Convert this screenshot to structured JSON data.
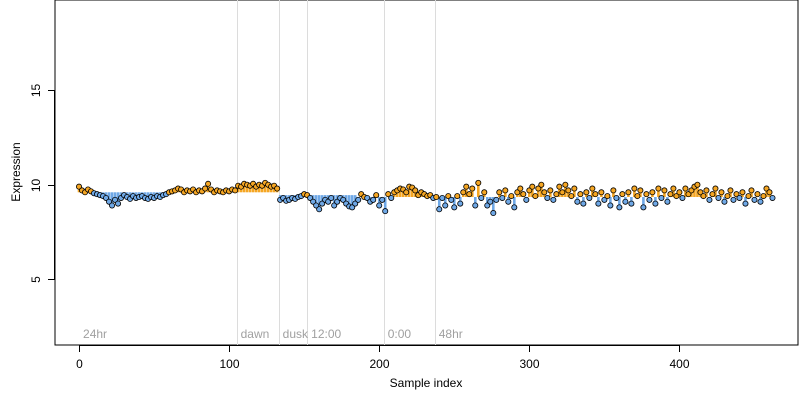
{
  "chart_data": {
    "type": "scatter",
    "title": "",
    "xlabel": "Sample index",
    "ylabel": "Expression",
    "xlim": [
      -16,
      479
    ],
    "ylim": [
      1.5,
      19.8
    ],
    "x_ticks": [
      "0",
      "100",
      "200",
      "300",
      "400"
    ],
    "x_tick_values": [
      0,
      100,
      200,
      300,
      400
    ],
    "y_ticks": [
      "5",
      "10",
      "15"
    ],
    "y_tick_values": [
      5,
      10,
      15
    ],
    "grid": false,
    "legend": "none",
    "colors": {
      "above_trend": "#f5a623",
      "below_trend": "#6fa8e6",
      "point_edge": "#000000",
      "region_line": "#dcdcdc",
      "region_label": "#a0a0a0"
    },
    "region_markers": [
      {
        "label": "24hr",
        "x": 0,
        "line": false
      },
      {
        "label": "dawn",
        "x": 105,
        "line": true
      },
      {
        "label": "dusk",
        "x": 133,
        "line": true
      },
      {
        "label": "12:00",
        "x": 152,
        "line": true
      },
      {
        "label": "0:00",
        "x": 203,
        "line": true
      },
      {
        "label": "48hr",
        "x": 237,
        "line": true
      }
    ],
    "trend_segments": [
      {
        "x_start": 0,
        "x_end": 133,
        "y": 9.6
      },
      {
        "x_start": 133,
        "x_end": 185,
        "y": 9.45
      },
      {
        "x_start": 185,
        "x_end": 460,
        "y": 9.35
      }
    ],
    "points": [
      [
        0,
        9.9
      ],
      [
        2,
        9.7
      ],
      [
        4,
        9.6
      ],
      [
        6,
        9.75
      ],
      [
        8,
        9.65
      ],
      [
        10,
        9.55
      ],
      [
        12,
        9.5
      ],
      [
        14,
        9.45
      ],
      [
        16,
        9.4
      ],
      [
        18,
        9.3
      ],
      [
        20,
        9.1
      ],
      [
        22,
        8.9
      ],
      [
        24,
        9.2
      ],
      [
        26,
        9.0
      ],
      [
        28,
        9.3
      ],
      [
        30,
        9.45
      ],
      [
        32,
        9.35
      ],
      [
        34,
        9.25
      ],
      [
        36,
        9.4
      ],
      [
        38,
        9.3
      ],
      [
        40,
        9.35
      ],
      [
        42,
        9.4
      ],
      [
        44,
        9.3
      ],
      [
        46,
        9.25
      ],
      [
        48,
        9.35
      ],
      [
        50,
        9.3
      ],
      [
        52,
        9.4
      ],
      [
        54,
        9.35
      ],
      [
        56,
        9.45
      ],
      [
        58,
        9.5
      ],
      [
        60,
        9.6
      ],
      [
        62,
        9.65
      ],
      [
        64,
        9.7
      ],
      [
        66,
        9.8
      ],
      [
        68,
        9.75
      ],
      [
        70,
        9.6
      ],
      [
        72,
        9.7
      ],
      [
        74,
        9.65
      ],
      [
        76,
        9.75
      ],
      [
        78,
        9.6
      ],
      [
        80,
        9.7
      ],
      [
        82,
        9.65
      ],
      [
        84,
        9.8
      ],
      [
        86,
        10.05
      ],
      [
        88,
        9.75
      ],
      [
        90,
        9.6
      ],
      [
        92,
        9.7
      ],
      [
        94,
        9.65
      ],
      [
        96,
        9.6
      ],
      [
        98,
        9.7
      ],
      [
        100,
        9.65
      ],
      [
        102,
        9.75
      ],
      [
        104,
        9.7
      ],
      [
        106,
        9.95
      ],
      [
        108,
        9.9
      ],
      [
        110,
        10.05
      ],
      [
        112,
        10.0
      ],
      [
        114,
        9.95
      ],
      [
        116,
        10.05
      ],
      [
        118,
        9.9
      ],
      [
        120,
        10.0
      ],
      [
        122,
        9.95
      ],
      [
        124,
        10.1
      ],
      [
        126,
        10.0
      ],
      [
        128,
        9.9
      ],
      [
        130,
        9.95
      ],
      [
        132,
        9.8
      ],
      [
        134,
        9.2
      ],
      [
        136,
        9.3
      ],
      [
        138,
        9.15
      ],
      [
        140,
        9.2
      ],
      [
        142,
        9.3
      ],
      [
        144,
        9.25
      ],
      [
        146,
        9.35
      ],
      [
        148,
        9.4
      ],
      [
        150,
        9.5
      ],
      [
        152,
        9.45
      ],
      [
        154,
        9.3
      ],
      [
        156,
        9.1
      ],
      [
        158,
        8.9
      ],
      [
        160,
        8.7
      ],
      [
        162,
        9.0
      ],
      [
        164,
        9.2
      ],
      [
        166,
        9.1
      ],
      [
        168,
        9.3
      ],
      [
        170,
        8.9
      ],
      [
        172,
        9.1
      ],
      [
        174,
        9.3
      ],
      [
        176,
        9.2
      ],
      [
        178,
        9.0
      ],
      [
        180,
        8.85
      ],
      [
        182,
        8.8
      ],
      [
        184,
        9.0
      ],
      [
        186,
        9.2
      ],
      [
        188,
        9.5
      ],
      [
        190,
        9.35
      ],
      [
        192,
        9.3
      ],
      [
        194,
        9.1
      ],
      [
        196,
        9.2
      ],
      [
        198,
        9.45
      ],
      [
        200,
        8.9
      ],
      [
        202,
        9.2
      ],
      [
        204,
        8.6
      ],
      [
        206,
        9.5
      ],
      [
        208,
        9.3
      ],
      [
        210,
        9.6
      ],
      [
        212,
        9.7
      ],
      [
        214,
        9.8
      ],
      [
        216,
        9.75
      ],
      [
        218,
        9.6
      ],
      [
        220,
        9.9
      ],
      [
        222,
        9.85
      ],
      [
        224,
        9.7
      ],
      [
        226,
        9.45
      ],
      [
        228,
        9.6
      ],
      [
        230,
        9.5
      ],
      [
        232,
        9.4
      ],
      [
        234,
        9.45
      ],
      [
        236,
        9.3
      ],
      [
        238,
        9.35
      ],
      [
        240,
        8.7
      ],
      [
        242,
        9.3
      ],
      [
        244,
        8.9
      ],
      [
        246,
        9.4
      ],
      [
        248,
        9.2
      ],
      [
        250,
        8.8
      ],
      [
        252,
        9.4
      ],
      [
        254,
        9.0
      ],
      [
        256,
        9.6
      ],
      [
        258,
        9.9
      ],
      [
        260,
        9.5
      ],
      [
        262,
        9.8
      ],
      [
        264,
        8.9
      ],
      [
        266,
        10.1
      ],
      [
        268,
        9.3
      ],
      [
        270,
        9.6
      ],
      [
        272,
        8.9
      ],
      [
        274,
        9.1
      ],
      [
        276,
        8.5
      ],
      [
        278,
        9.2
      ],
      [
        280,
        9.6
      ],
      [
        282,
        9.3
      ],
      [
        284,
        9.7
      ],
      [
        286,
        9.1
      ],
      [
        288,
        9.4
      ],
      [
        290,
        8.8
      ],
      [
        292,
        9.6
      ],
      [
        294,
        9.8
      ],
      [
        296,
        9.5
      ],
      [
        298,
        9.2
      ],
      [
        300,
        9.7
      ],
      [
        302,
        9.9
      ],
      [
        304,
        9.4
      ],
      [
        306,
        9.8
      ],
      [
        308,
        10.0
      ],
      [
        310,
        9.6
      ],
      [
        312,
        9.3
      ],
      [
        314,
        9.7
      ],
      [
        316,
        9.2
      ],
      [
        318,
        9.5
      ],
      [
        320,
        9.9
      ],
      [
        322,
        9.6
      ],
      [
        324,
        10.0
      ],
      [
        326,
        9.7
      ],
      [
        328,
        9.4
      ],
      [
        330,
        9.8
      ],
      [
        332,
        9.1
      ],
      [
        334,
        9.5
      ],
      [
        336,
        9.0
      ],
      [
        338,
        9.6
      ],
      [
        340,
        9.3
      ],
      [
        342,
        9.8
      ],
      [
        344,
        9.5
      ],
      [
        346,
        9.0
      ],
      [
        348,
        9.6
      ],
      [
        350,
        9.2
      ],
      [
        352,
        9.4
      ],
      [
        354,
        8.9
      ],
      [
        356,
        9.7
      ],
      [
        358,
        9.3
      ],
      [
        360,
        8.8
      ],
      [
        362,
        9.5
      ],
      [
        364,
        9.1
      ],
      [
        366,
        9.6
      ],
      [
        368,
        9.0
      ],
      [
        370,
        9.8
      ],
      [
        372,
        9.4
      ],
      [
        374,
        9.7
      ],
      [
        376,
        8.8
      ],
      [
        378,
        9.5
      ],
      [
        380,
        9.2
      ],
      [
        382,
        9.6
      ],
      [
        384,
        9.0
      ],
      [
        386,
        9.8
      ],
      [
        388,
        9.3
      ],
      [
        390,
        9.7
      ],
      [
        392,
        9.1
      ],
      [
        394,
        9.5
      ],
      [
        396,
        9.8
      ],
      [
        398,
        9.4
      ],
      [
        400,
        9.6
      ],
      [
        402,
        9.3
      ],
      [
        404,
        9.8
      ],
      [
        406,
        9.5
      ],
      [
        408,
        9.7
      ],
      [
        410,
        9.9
      ],
      [
        412,
        10.0
      ],
      [
        414,
        9.6
      ],
      [
        416,
        9.4
      ],
      [
        418,
        9.7
      ],
      [
        420,
        9.2
      ],
      [
        422,
        9.5
      ],
      [
        424,
        9.8
      ],
      [
        426,
        9.3
      ],
      [
        428,
        9.6
      ],
      [
        430,
        9.1
      ],
      [
        432,
        9.4
      ],
      [
        434,
        9.7
      ],
      [
        436,
        9.2
      ],
      [
        438,
        9.5
      ],
      [
        440,
        9.3
      ],
      [
        442,
        9.6
      ],
      [
        444,
        9.0
      ],
      [
        446,
        9.4
      ],
      [
        448,
        9.7
      ],
      [
        450,
        9.2
      ],
      [
        452,
        9.5
      ],
      [
        454,
        9.1
      ],
      [
        456,
        9.4
      ],
      [
        458,
        9.8
      ],
      [
        460,
        9.6
      ],
      [
        462,
        9.3
      ]
    ]
  }
}
